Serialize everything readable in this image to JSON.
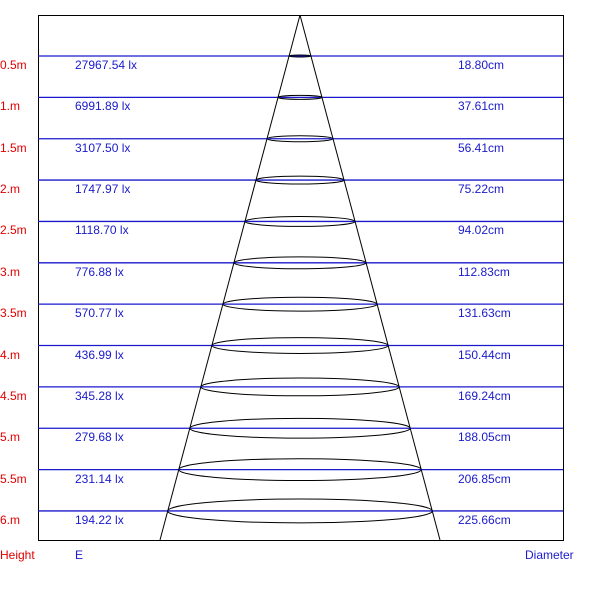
{
  "colors": {
    "height_label": "#e00000",
    "value_text": "#1a1acc",
    "level_line": "#1a1acc",
    "cone": "#000000"
  },
  "rows": [
    {
      "height": "0.5m",
      "illuminance": "27967.54 lx",
      "diameter": "18.80cm"
    },
    {
      "height": "1.m",
      "illuminance": "6991.89 lx",
      "diameter": "37.61cm"
    },
    {
      "height": "1.5m",
      "illuminance": "3107.50 lx",
      "diameter": "56.41cm"
    },
    {
      "height": "2.m",
      "illuminance": "1747.97 lx",
      "diameter": "75.22cm"
    },
    {
      "height": "2.5m",
      "illuminance": "1118.70 lx",
      "diameter": "94.02cm"
    },
    {
      "height": "3.m",
      "illuminance": "776.88 lx",
      "diameter": "112.83cm"
    },
    {
      "height": "3.5m",
      "illuminance": "570.77 lx",
      "diameter": "131.63cm"
    },
    {
      "height": "4.m",
      "illuminance": "436.99 lx",
      "diameter": "150.44cm"
    },
    {
      "height": "4.5m",
      "illuminance": "345.28 lx",
      "diameter": "169.24cm"
    },
    {
      "height": "5.m",
      "illuminance": "279.68 lx",
      "diameter": "188.05cm"
    },
    {
      "height": "5.5m",
      "illuminance": "231.14 lx",
      "diameter": "206.85cm"
    },
    {
      "height": "6.m",
      "illuminance": "194.22 lx",
      "diameter": "225.66cm"
    }
  ],
  "footer": {
    "height_label": "Height",
    "e_label": "E",
    "diameter_label": "Diameter"
  }
}
